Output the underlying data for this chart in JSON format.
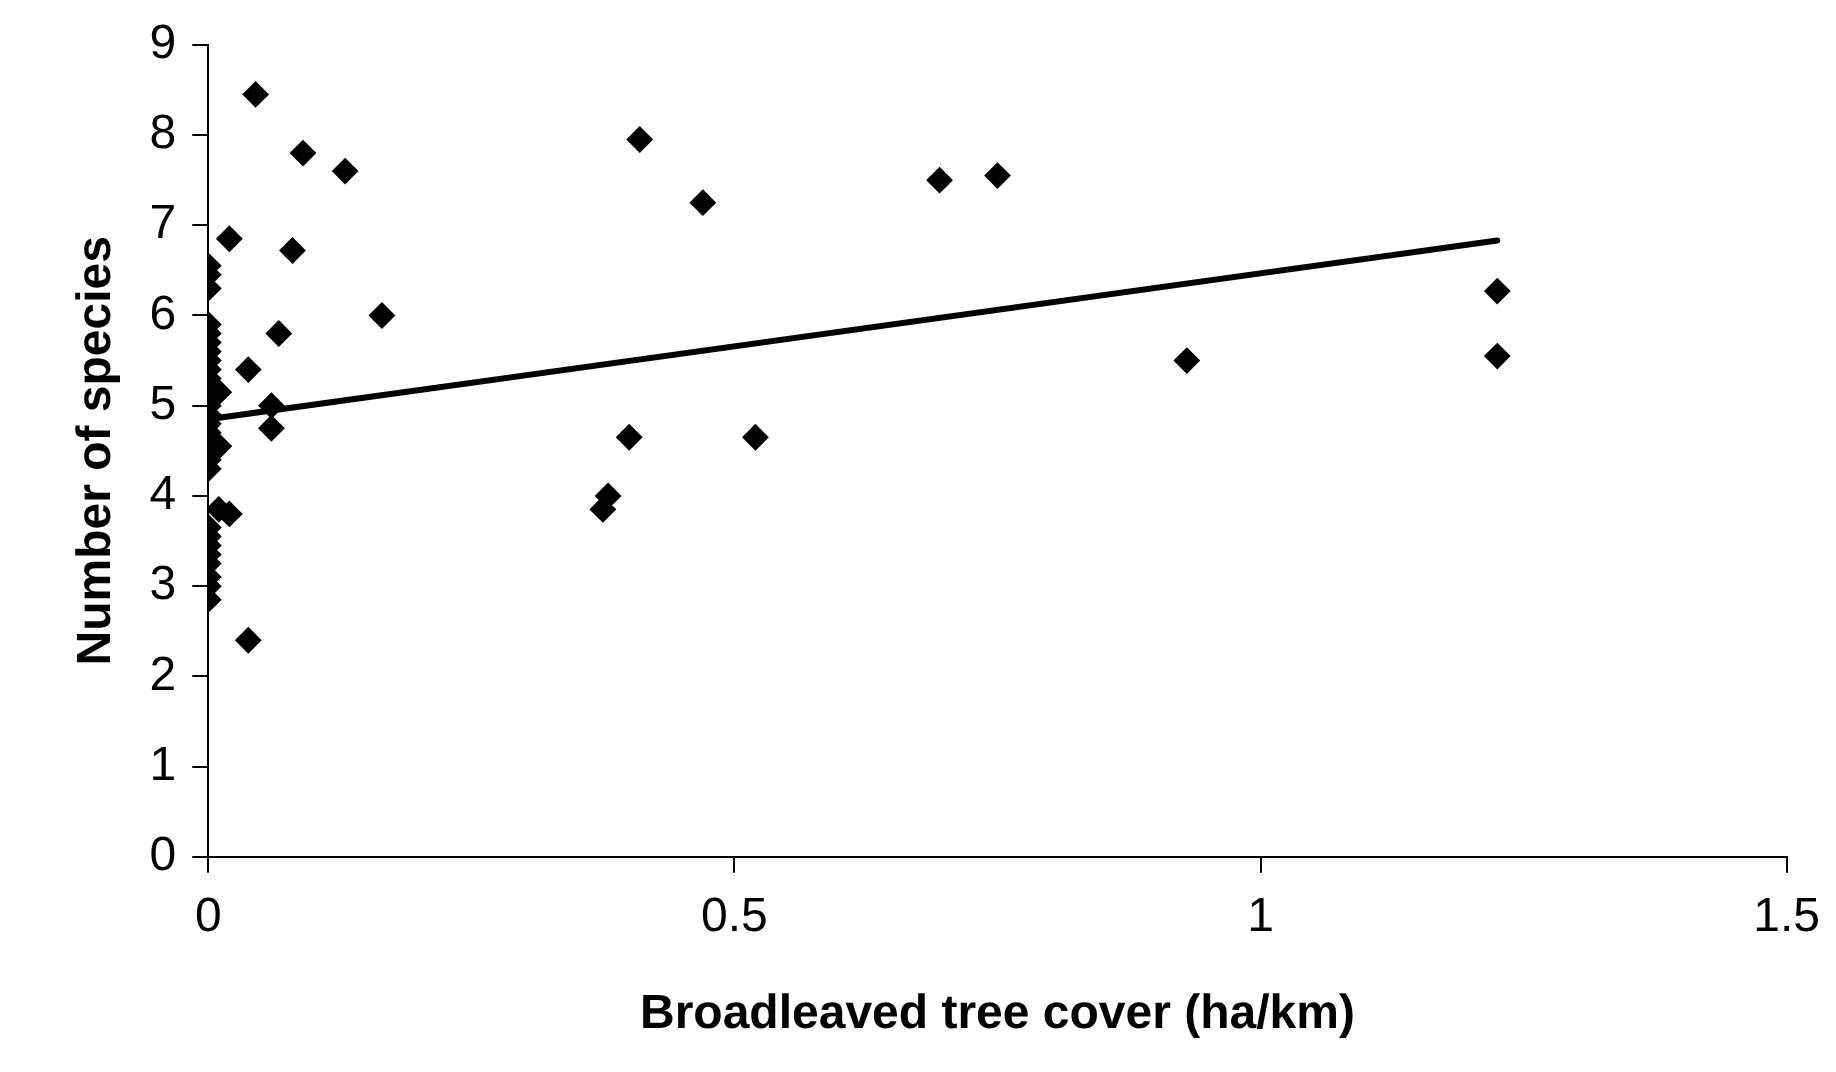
{
  "chart_data": {
    "type": "scatter",
    "xlabel": "Broadleaved tree cover (ha/km)",
    "ylabel": "Number of species",
    "xlim": [
      0,
      1.5
    ],
    "xticks": [
      0,
      0.5,
      1,
      1.5
    ],
    "ylim": [
      0,
      9
    ],
    "yticks": [
      0,
      1,
      2,
      3,
      4,
      5,
      6,
      7,
      8,
      9
    ],
    "grid": false,
    "legend": false,
    "marker": "diamond",
    "series": [
      {
        "color": "#000000",
        "x": [
          0.045,
          0.09,
          0.13,
          0.02,
          0.08,
          0.165,
          0.067,
          0.038,
          0.06,
          0.06,
          0.038,
          0.02,
          0,
          0,
          0,
          0,
          0,
          0,
          0,
          0,
          0,
          0,
          0,
          0,
          0,
          0,
          0,
          0,
          0,
          0,
          0,
          0,
          0,
          0,
          0,
          0,
          0.01,
          0.01,
          0.01,
          0.41,
          0.47,
          0.695,
          0.75,
          0.93,
          1.225,
          1.225,
          0.4,
          0.52,
          0.375,
          0.38
        ],
        "values": [
          8.45,
          7.8,
          7.6,
          6.85,
          6.72,
          6.0,
          5.8,
          5.4,
          5.0,
          4.75,
          2.4,
          3.8,
          6.55,
          6.45,
          6.3,
          5.9,
          5.8,
          5.7,
          5.6,
          5.5,
          5.4,
          5.3,
          5.0,
          4.9,
          4.8,
          4.7,
          4.4,
          4.3,
          3.65,
          3.55,
          3.45,
          3.35,
          3.25,
          3.1,
          3.0,
          2.85,
          5.15,
          4.55,
          3.85,
          7.95,
          7.25,
          7.5,
          7.55,
          5.5,
          6.27,
          5.55,
          4.65,
          4.65,
          3.85,
          4.0
        ]
      },
      {
        "type": "line",
        "color": "#000000",
        "marker": "none",
        "x": [
          0,
          1.225
        ],
        "values": [
          4.85,
          6.83
        ]
      }
    ]
  }
}
